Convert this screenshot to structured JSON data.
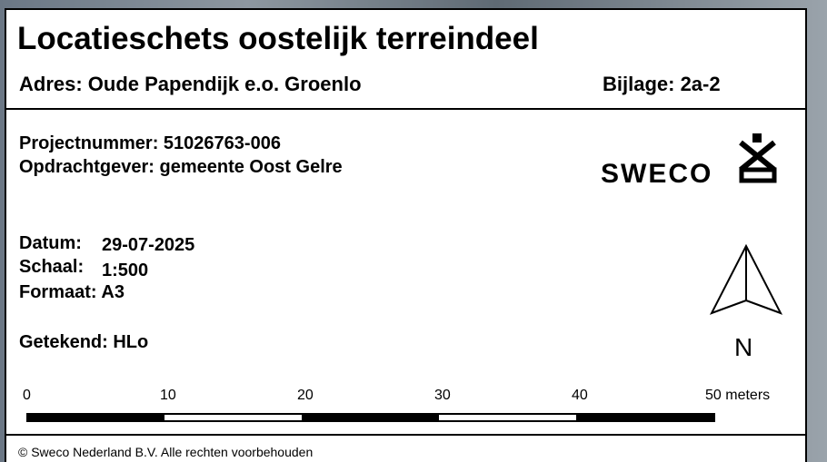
{
  "header": {
    "title": "Locatieschets oostelijk terreindeel",
    "address": "Adres: Oude Papendijk e.o. Groenlo",
    "appendix": "Bijlage: 2a-2"
  },
  "project": {
    "number": "Projectnummer: 51026763-006",
    "client": "Opdrachtgever: gemeente Oost Gelre"
  },
  "logo": "SWECO",
  "details": {
    "date_label": "Datum:",
    "date": "29-07-2025",
    "scale_label": "Schaal:",
    "scale": "1:500",
    "format": "Formaat: A3",
    "drawn": "Getekend: HLo"
  },
  "north": "N",
  "scale_bar": {
    "labels": [
      "0",
      "10",
      "20",
      "30",
      "40",
      "50 meters"
    ]
  },
  "footer": "© Sweco Nederland B.V.  Alle rechten voorbehouden"
}
